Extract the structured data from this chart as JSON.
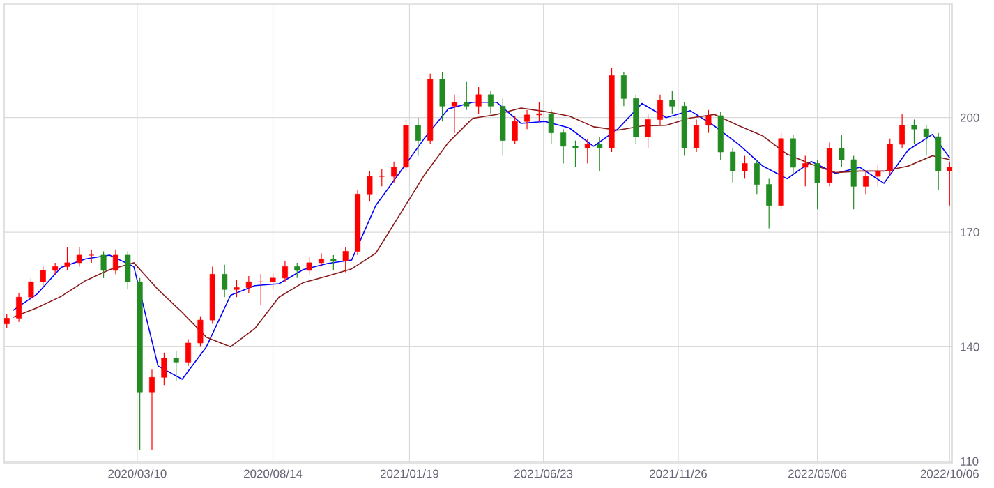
{
  "chart_data": {
    "type": "candlestick",
    "x": [
      "2019-10-11",
      "2019-10-25",
      "2019-11-08",
      "2019-11-22",
      "2019-12-06",
      "2019-12-20",
      "2020-01-03",
      "2020-01-17",
      "2020-01-31",
      "2020-02-14",
      "2020-02-28",
      "2020-03-13",
      "2020-03-27",
      "2020-04-10",
      "2020-04-24",
      "2020-05-08",
      "2020-05-22",
      "2020-06-05",
      "2020-06-19",
      "2020-07-03",
      "2020-07-17",
      "2020-07-31",
      "2020-08-14",
      "2020-08-28",
      "2020-09-11",
      "2020-09-25",
      "2020-10-09",
      "2020-10-23",
      "2020-11-06",
      "2020-11-20",
      "2020-12-04",
      "2020-12-18",
      "2021-01-01",
      "2021-01-15",
      "2021-01-29",
      "2021-02-12",
      "2021-02-26",
      "2021-03-12",
      "2021-03-26",
      "2021-04-09",
      "2021-04-23",
      "2021-05-07",
      "2021-05-21",
      "2021-06-04",
      "2021-06-18",
      "2021-07-02",
      "2021-07-16",
      "2021-07-30",
      "2021-08-13",
      "2021-08-27",
      "2021-09-10",
      "2021-09-24",
      "2021-10-08",
      "2021-10-22",
      "2021-11-05",
      "2021-11-19",
      "2021-12-03",
      "2021-12-17",
      "2021-12-31",
      "2022-01-14",
      "2022-01-28",
      "2022-02-11",
      "2022-02-25",
      "2022-03-11",
      "2022-03-25",
      "2022-04-08",
      "2022-04-22",
      "2022-05-06",
      "2022-05-20",
      "2022-06-03",
      "2022-06-17",
      "2022-07-01",
      "2022-07-15",
      "2022-07-29",
      "2022-08-12",
      "2022-08-26",
      "2022-09-09",
      "2022-09-23",
      "2022-10-06"
    ],
    "ohlc": [
      [
        146,
        148.5,
        145,
        147.5
      ],
      [
        147.5,
        154,
        146.5,
        153
      ],
      [
        153,
        158,
        152,
        157
      ],
      [
        157,
        161,
        156,
        160
      ],
      [
        160,
        162,
        159,
        161
      ],
      [
        161,
        166,
        160,
        162
      ],
      [
        162,
        166,
        161,
        164
      ],
      [
        164,
        165.5,
        162,
        164
      ],
      [
        164,
        165,
        158,
        160
      ],
      [
        160,
        165.5,
        159,
        164
      ],
      [
        164,
        165,
        155,
        157
      ],
      [
        157,
        158,
        113,
        128
      ],
      [
        128,
        134,
        113,
        132
      ],
      [
        132,
        138.5,
        130,
        137
      ],
      [
        137,
        139,
        131,
        136
      ],
      [
        136,
        142,
        135,
        141
      ],
      [
        141,
        148,
        140,
        147
      ],
      [
        147,
        161,
        146,
        159
      ],
      [
        159,
        161.5,
        153,
        155
      ],
      [
        155,
        157.5,
        153,
        155.5
      ],
      [
        155.5,
        158.5,
        154,
        157
      ],
      [
        157,
        159,
        151,
        157
      ],
      [
        157,
        159.5,
        155,
        158
      ],
      [
        158,
        162.5,
        157,
        161
      ],
      [
        161,
        162,
        158,
        160
      ],
      [
        160,
        163.5,
        159,
        162
      ],
      [
        162,
        164.5,
        161,
        163
      ],
      [
        163,
        164,
        160,
        162.5
      ],
      [
        162.5,
        166,
        159.5,
        165
      ],
      [
        165,
        181,
        164,
        180
      ],
      [
        180,
        186,
        178,
        184.6
      ],
      [
        184.6,
        186.5,
        182,
        184.6
      ],
      [
        184.6,
        188.5,
        183,
        187
      ],
      [
        187,
        199.5,
        186,
        198
      ],
      [
        198,
        200,
        190,
        194
      ],
      [
        194,
        211.5,
        193,
        210
      ],
      [
        210,
        212,
        199,
        203
      ],
      [
        203,
        206,
        196,
        204
      ],
      [
        204,
        209.5,
        202,
        203
      ],
      [
        203,
        208,
        201,
        206
      ],
      [
        206,
        207,
        201,
        203
      ],
      [
        203,
        205,
        190,
        194
      ],
      [
        194,
        200.5,
        193,
        199
      ],
      [
        199,
        202,
        197,
        200.7
      ],
      [
        200.7,
        204,
        199,
        201
      ],
      [
        201,
        202,
        193,
        196
      ],
      [
        196,
        197,
        188,
        192.5
      ],
      [
        192.5,
        194,
        187,
        192
      ],
      [
        192,
        194.5,
        188,
        193
      ],
      [
        193,
        195,
        186,
        192
      ],
      [
        192,
        213,
        191,
        211
      ],
      [
        211,
        212,
        203,
        205
      ],
      [
        205,
        206,
        193,
        195
      ],
      [
        195,
        201,
        192,
        199.5
      ],
      [
        199.5,
        206,
        198,
        204.5
      ],
      [
        204.5,
        207,
        201,
        203
      ],
      [
        203,
        204,
        190,
        192
      ],
      [
        192,
        199.5,
        191,
        198
      ],
      [
        198,
        202,
        196,
        200.5
      ],
      [
        200.5,
        201.5,
        189,
        191
      ],
      [
        191,
        192,
        183,
        186
      ],
      [
        186,
        190,
        184,
        188
      ],
      [
        188,
        189,
        180,
        182.5
      ],
      [
        182.5,
        184,
        171,
        177
      ],
      [
        177,
        196,
        176,
        194.5
      ],
      [
        194.5,
        195.5,
        185,
        187
      ],
      [
        187,
        190,
        182,
        188
      ],
      [
        188,
        189,
        176,
        183
      ],
      [
        183,
        193.5,
        182,
        192
      ],
      [
        192,
        195.5,
        187,
        189
      ],
      [
        189,
        190,
        176,
        182
      ],
      [
        182,
        186,
        180,
        184.6
      ],
      [
        184.6,
        187.5,
        182,
        186
      ],
      [
        186,
        194.5,
        185,
        193
      ],
      [
        193,
        201,
        192,
        198
      ],
      [
        198,
        199.5,
        193,
        197
      ],
      [
        197,
        198,
        190,
        195
      ],
      [
        195,
        196,
        181,
        186
      ],
      [
        186,
        188.5,
        177,
        187
      ]
    ],
    "colors": [
      "#ff0000",
      "#ff0000",
      "#ff0000",
      "#ff0000",
      "#ff0000",
      "#ff0000",
      "#ff0000",
      "#ff0000",
      "#228b22",
      "#ff0000",
      "#228b22",
      "#228b22",
      "#ff0000",
      "#ff0000",
      "#228b22",
      "#ff0000",
      "#ff0000",
      "#ff0000",
      "#228b22",
      "#ff0000",
      "#ff0000",
      "#ff0000",
      "#ff0000",
      "#ff0000",
      "#228b22",
      "#ff0000",
      "#ff0000",
      "#228b22",
      "#ff0000",
      "#ff0000",
      "#ff0000",
      "#ff0000",
      "#ff0000",
      "#ff0000",
      "#228b22",
      "#ff0000",
      "#228b22",
      "#ff0000",
      "#228b22",
      "#ff0000",
      "#228b22",
      "#228b22",
      "#ff0000",
      "#ff0000",
      "#ff0000",
      "#228b22",
      "#228b22",
      "#228b22",
      "#ff0000",
      "#228b22",
      "#ff0000",
      "#228b22",
      "#228b22",
      "#ff0000",
      "#ff0000",
      "#228b22",
      "#228b22",
      "#ff0000",
      "#ff0000",
      "#228b22",
      "#228b22",
      "#ff0000",
      "#228b22",
      "#228b22",
      "#ff0000",
      "#228b22",
      "#ff0000",
      "#228b22",
      "#ff0000",
      "#228b22",
      "#228b22",
      "#ff0000",
      "#ff0000",
      "#ff0000",
      "#ff0000",
      "#228b22",
      "#228b22",
      "#228b22",
      "#ff0000"
    ],
    "series": [
      {
        "type": "line",
        "color": "#0000ff",
        "x": [
          "2019-10-18",
          "2019-11-15",
          "2019-12-13",
          "2020-01-10",
          "2020-02-07",
          "2020-03-06",
          "2020-04-03",
          "2020-05-01",
          "2020-05-29",
          "2020-06-26",
          "2020-07-24",
          "2020-08-21",
          "2020-09-18",
          "2020-10-16",
          "2020-11-13",
          "2020-12-11",
          "2021-01-08",
          "2021-02-05",
          "2021-03-05",
          "2021-04-02",
          "2021-04-30",
          "2021-05-28",
          "2021-06-25",
          "2021-07-23",
          "2021-08-20",
          "2021-09-17",
          "2021-10-15",
          "2021-11-12",
          "2021-12-10",
          "2022-01-07",
          "2022-02-04",
          "2022-03-04",
          "2022-04-01",
          "2022-04-29",
          "2022-05-27",
          "2022-06-24",
          "2022-07-22",
          "2022-08-19",
          "2022-09-16",
          "2022-10-06"
        ],
        "values": [
          149.5,
          153.8,
          160.8,
          163,
          164,
          161,
          135,
          131.5,
          140,
          153.5,
          156,
          156.5,
          160.2,
          161.8,
          162.7,
          177,
          185.7,
          194.5,
          202.3,
          204,
          204,
          198.5,
          199,
          197.3,
          192.5,
          197,
          203.7,
          200,
          201.8,
          197.8,
          193,
          187.3,
          184,
          188.5,
          185.4,
          187,
          182.8,
          191.5,
          195.6,
          189.5
        ]
      },
      {
        "type": "line",
        "color": "#8b1a1a",
        "x": [
          "2019-10-18",
          "2019-11-15",
          "2019-12-13",
          "2020-01-10",
          "2020-02-07",
          "2020-03-06",
          "2020-04-03",
          "2020-05-01",
          "2020-05-29",
          "2020-06-26",
          "2020-07-24",
          "2020-08-21",
          "2020-09-18",
          "2020-10-16",
          "2020-11-13",
          "2020-12-11",
          "2021-01-08",
          "2021-02-05",
          "2021-03-05",
          "2021-04-02",
          "2021-04-30",
          "2021-05-28",
          "2021-06-25",
          "2021-07-23",
          "2021-08-20",
          "2021-09-17",
          "2021-10-15",
          "2021-11-12",
          "2021-12-10",
          "2022-01-07",
          "2022-02-04",
          "2022-03-04",
          "2022-04-01",
          "2022-04-29",
          "2022-05-27",
          "2022-06-24",
          "2022-07-22",
          "2022-08-19",
          "2022-09-16",
          "2022-10-06"
        ],
        "values": [
          147.7,
          150.2,
          153.2,
          157.3,
          160.2,
          162,
          155,
          149,
          142.5,
          140,
          144.8,
          153,
          156.8,
          158.5,
          160.4,
          164.5,
          174.7,
          184.9,
          193.5,
          199.8,
          200.8,
          202.5,
          201.6,
          200.4,
          197.6,
          196.7,
          197.8,
          198,
          199.9,
          200.8,
          197.9,
          195.2,
          190.4,
          187.8,
          185.6,
          186,
          186,
          187.3,
          190,
          189
        ]
      }
    ],
    "xlim": [
      "2019-10-08",
      "2022-10-09"
    ],
    "xticks": [
      {
        "value": "2020-03-10",
        "label": "2020/03/10"
      },
      {
        "value": "2020-08-14",
        "label": "2020/08/14"
      },
      {
        "value": "2021-01-19",
        "label": "2021/01/19"
      },
      {
        "value": "2021-06-23",
        "label": "2021/06/23"
      },
      {
        "value": "2021-11-26",
        "label": "2021/11/26"
      },
      {
        "value": "2022-05-06",
        "label": "2022/05/06"
      },
      {
        "value": "2022-10-06",
        "label": "2022/10/06"
      }
    ],
    "ylim": [
      109.6,
      229.7
    ],
    "yticks": [
      110,
      140,
      170,
      200
    ],
    "grid": true
  }
}
